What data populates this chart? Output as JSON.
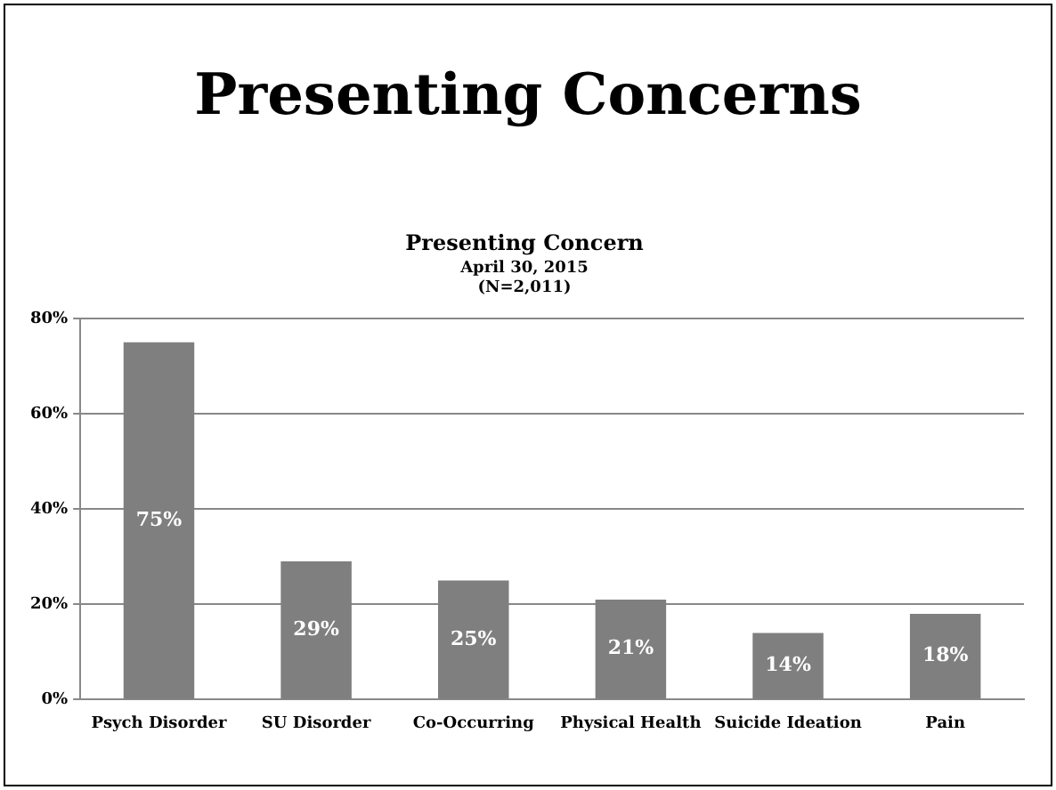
{
  "chart_data": {
    "type": "bar",
    "title": "Presenting Concerns",
    "subtitle": "Presenting Concern",
    "annotations": [
      "April 30, 2015",
      "(N=2,011)"
    ],
    "categories": [
      "Psych Disorder",
      "SU Disorder",
      "Co-Occurring",
      "Physical Health",
      "Suicide Ideation",
      "Pain"
    ],
    "values": [
      75,
      29,
      25,
      21,
      14,
      18
    ],
    "value_labels": [
      "75%",
      "29%",
      "25%",
      "21%",
      "14%",
      "18%"
    ],
    "color": "#7f7f7f",
    "ylim": [
      0,
      80
    ],
    "yticks": [
      {
        "value": 0,
        "label": "0%"
      },
      {
        "value": 20,
        "label": "20%"
      },
      {
        "value": 40,
        "label": "40%"
      },
      {
        "value": 60,
        "label": "60%"
      },
      {
        "value": 80,
        "label": "80%"
      }
    ],
    "grid": "y",
    "legend": false
  }
}
